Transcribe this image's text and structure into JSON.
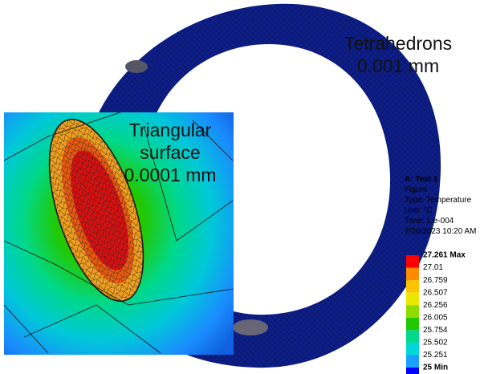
{
  "annotations": {
    "mesh_3d": [
      "Tetrahedrons",
      "0.001 mm"
    ],
    "mesh_surface": [
      "Triangular",
      "surface",
      "0.0001 mm"
    ]
  },
  "info": [
    "A: Test 1",
    "Figure",
    "Type: Temperature",
    "Unit: °C",
    "Time: 1.e-004",
    "7/26/2023 10:20 AM"
  ],
  "legend": {
    "labels": [
      "27.261 Max",
      "27.01",
      "26.759",
      "26.507",
      "26.256",
      "26.005",
      "25.754",
      "25.502",
      "25.251",
      "25 Min"
    ],
    "colors": [
      "#ff0000",
      "#ff8c00",
      "#ffc400",
      "#e8e800",
      "#8fdc00",
      "#22c800",
      "#00d88a",
      "#00d8d8",
      "#1aa0ff",
      "#0000ff"
    ]
  }
}
